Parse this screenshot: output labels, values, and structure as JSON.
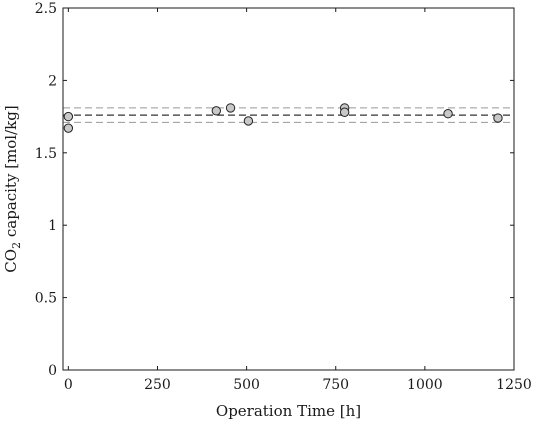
{
  "chart_data": {
    "type": "scatter",
    "xlabel": "Operation Time [h]",
    "ylabel_main": "CO",
    "ylabel_sub": "2",
    "ylabel_rest": " capacity [mol/kg]",
    "xlim": [
      -15,
      1250
    ],
    "ylim": [
      0,
      2.5
    ],
    "xticks": [
      0,
      250,
      500,
      750,
      1000,
      1250
    ],
    "yticks": [
      0,
      0.5,
      1,
      1.5,
      2,
      2.5
    ],
    "grid": false,
    "points": [
      {
        "x": 0,
        "y": 1.75
      },
      {
        "x": 0,
        "y": 1.67
      },
      {
        "x": 415,
        "y": 1.79
      },
      {
        "x": 455,
        "y": 1.81
      },
      {
        "x": 505,
        "y": 1.72
      },
      {
        "x": 775,
        "y": 1.81
      },
      {
        "x": 775,
        "y": 1.78
      },
      {
        "x": 1065,
        "y": 1.77
      },
      {
        "x": 1205,
        "y": 1.74
      }
    ],
    "mean_line": {
      "y": 1.76,
      "style": "dashed",
      "color": "#333333"
    },
    "band_lines": [
      {
        "y": 1.81,
        "style": "dashed",
        "color": "#999999"
      },
      {
        "y": 1.71,
        "style": "dashed",
        "color": "#999999"
      }
    ],
    "marker_fill": "#c8c8c8",
    "marker_stroke": "#222222"
  }
}
